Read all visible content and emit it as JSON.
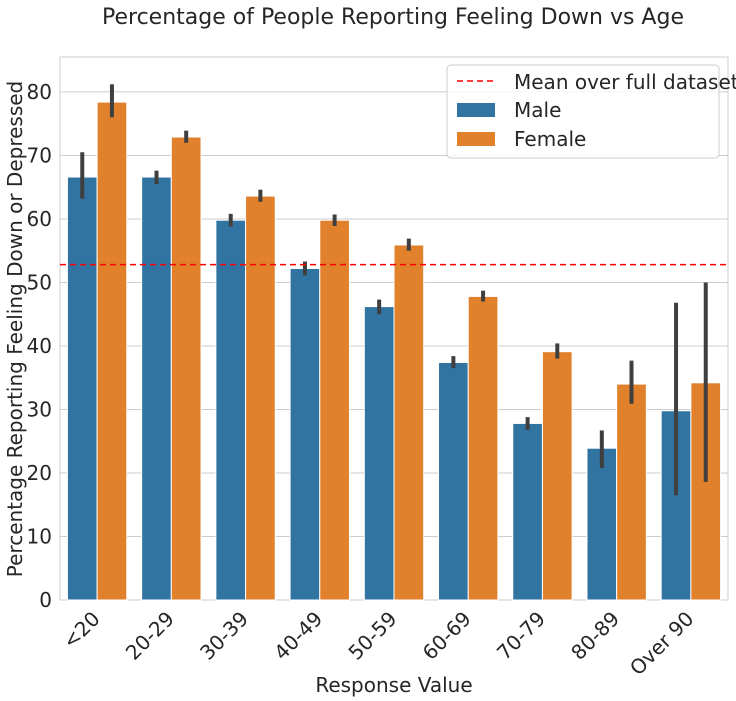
{
  "chart_data": {
    "type": "bar",
    "title": "Percentage of People Reporting Feeling Down vs Age",
    "xlabel": "Response Value",
    "ylabel": "Percentage Reporting Feeling Down or Depressed",
    "categories": [
      "<20",
      "20-29",
      "30-39",
      "40-49",
      "50-59",
      "60-69",
      "70-79",
      "80-89",
      "Over 90"
    ],
    "series": [
      {
        "name": "Male",
        "color": "#3274a1",
        "values": [
          66.6,
          66.6,
          59.8,
          52.2,
          46.2,
          37.4,
          27.8,
          23.9,
          29.8
        ],
        "ci_low": [
          63.2,
          65.5,
          58.8,
          51.1,
          45.0,
          36.5,
          26.8,
          20.8,
          16.5
        ],
        "ci_high": [
          70.5,
          67.6,
          60.8,
          53.3,
          47.3,
          38.4,
          28.8,
          26.7,
          46.8
        ]
      },
      {
        "name": "Female",
        "color": "#e1812c",
        "values": [
          78.4,
          72.9,
          63.6,
          59.8,
          55.9,
          47.8,
          39.1,
          34.0,
          34.2
        ],
        "ci_low": [
          76.0,
          72.0,
          62.7,
          58.9,
          55.0,
          47.0,
          38.0,
          30.9,
          18.6
        ],
        "ci_high": [
          81.2,
          73.9,
          64.6,
          60.7,
          56.9,
          48.7,
          40.4,
          37.7,
          50.0
        ]
      }
    ],
    "reference_line": {
      "name": "Mean over full dataset",
      "value": 52.8,
      "color": "#ff0000",
      "style": "dashed"
    },
    "ylim": [
      0,
      85.5
    ],
    "yticks": [
      0,
      10,
      20,
      30,
      40,
      50,
      60,
      70,
      80
    ],
    "grid": "horizontal",
    "legend_position": "top-right",
    "xtick_rotation": "45deg"
  }
}
